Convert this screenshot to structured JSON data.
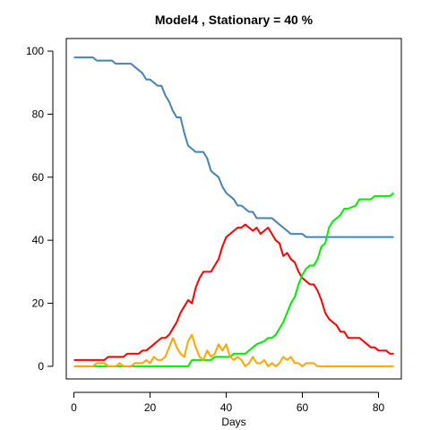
{
  "chart_data": {
    "type": "line",
    "title": "Model4 , Stationary = 40 %",
    "xlabel": "Days",
    "ylabel": "",
    "xlim": [
      -2,
      86
    ],
    "ylim": [
      -4,
      104
    ],
    "x_ticks": [
      0,
      20,
      40,
      60,
      80
    ],
    "y_ticks": [
      0,
      20,
      40,
      60,
      80,
      100
    ],
    "grid": false,
    "legend": "none",
    "series": [
      {
        "color": "#4682B4",
        "points": [
          [
            0,
            98
          ],
          [
            5,
            98
          ],
          [
            6,
            97
          ],
          [
            10,
            97
          ],
          [
            11,
            96
          ],
          [
            15,
            96
          ],
          [
            16,
            95
          ],
          [
            17,
            94
          ],
          [
            18,
            93
          ],
          [
            19,
            91
          ],
          [
            20,
            91
          ],
          [
            21,
            90
          ],
          [
            22,
            89
          ],
          [
            23,
            89
          ],
          [
            24,
            86
          ],
          [
            25,
            84
          ],
          [
            26,
            81
          ],
          [
            27,
            79
          ],
          [
            28,
            79
          ],
          [
            29,
            74
          ],
          [
            30,
            70
          ],
          [
            31,
            69
          ],
          [
            32,
            68
          ],
          [
            34,
            68
          ],
          [
            35,
            66
          ],
          [
            36,
            62
          ],
          [
            37,
            61
          ],
          [
            38,
            60
          ],
          [
            39,
            57
          ],
          [
            40,
            55
          ],
          [
            41,
            54
          ],
          [
            42,
            53
          ],
          [
            43,
            51
          ],
          [
            44,
            51
          ],
          [
            45,
            50
          ],
          [
            46,
            49
          ],
          [
            47,
            49
          ],
          [
            48,
            47
          ],
          [
            52,
            47
          ],
          [
            53,
            46
          ],
          [
            54,
            45
          ],
          [
            55,
            44
          ],
          [
            56,
            43
          ],
          [
            57,
            42
          ],
          [
            60,
            42
          ],
          [
            61,
            41
          ],
          [
            84,
            41
          ]
        ]
      },
      {
        "color": "#FF0000",
        "points": [
          [
            0,
            2
          ],
          [
            8,
            2
          ],
          [
            9,
            3
          ],
          [
            13,
            3
          ],
          [
            14,
            4
          ],
          [
            17,
            4
          ],
          [
            18,
            5
          ],
          [
            19,
            5
          ],
          [
            20,
            6
          ],
          [
            21,
            7
          ],
          [
            22,
            8
          ],
          [
            23,
            9
          ],
          [
            24,
            9
          ],
          [
            25,
            10
          ],
          [
            26,
            12
          ],
          [
            27,
            14
          ],
          [
            28,
            17
          ],
          [
            29,
            19
          ],
          [
            30,
            21
          ],
          [
            31,
            20
          ],
          [
            32,
            25
          ],
          [
            33,
            28
          ],
          [
            34,
            30
          ],
          [
            36,
            30
          ],
          [
            37,
            32
          ],
          [
            38,
            34
          ],
          [
            39,
            38
          ],
          [
            40,
            41
          ],
          [
            41,
            42
          ],
          [
            42,
            43
          ],
          [
            43,
            44
          ],
          [
            44,
            44
          ],
          [
            45,
            45
          ],
          [
            46,
            44
          ],
          [
            47,
            43
          ],
          [
            48,
            44
          ],
          [
            49,
            42
          ],
          [
            50,
            43
          ],
          [
            51,
            44
          ],
          [
            52,
            42
          ],
          [
            53,
            40
          ],
          [
            54,
            39
          ],
          [
            55,
            35
          ],
          [
            56,
            36
          ],
          [
            57,
            34
          ],
          [
            58,
            33
          ],
          [
            59,
            30
          ],
          [
            60,
            28
          ],
          [
            61,
            27
          ],
          [
            62,
            26
          ],
          [
            63,
            26
          ],
          [
            64,
            24
          ],
          [
            65,
            21
          ],
          [
            66,
            17
          ],
          [
            67,
            15
          ],
          [
            68,
            14
          ],
          [
            69,
            13
          ],
          [
            70,
            11
          ],
          [
            71,
            11
          ],
          [
            72,
            9
          ],
          [
            75,
            9
          ],
          [
            76,
            8
          ],
          [
            77,
            7
          ],
          [
            78,
            6
          ],
          [
            79,
            6
          ],
          [
            80,
            5
          ],
          [
            82,
            5
          ],
          [
            83,
            4
          ],
          [
            84,
            4
          ]
        ]
      },
      {
        "color": "#00EE00",
        "points": [
          [
            0,
            0
          ],
          [
            30,
            0
          ],
          [
            31,
            2
          ],
          [
            36,
            2
          ],
          [
            37,
            3
          ],
          [
            41,
            3
          ],
          [
            42,
            4
          ],
          [
            45,
            4
          ],
          [
            46,
            5
          ],
          [
            47,
            6
          ],
          [
            48,
            7
          ],
          [
            50,
            8
          ],
          [
            51,
            9
          ],
          [
            52,
            9
          ],
          [
            53,
            10
          ],
          [
            54,
            12
          ],
          [
            55,
            14
          ],
          [
            56,
            17
          ],
          [
            57,
            20
          ],
          [
            58,
            22
          ],
          [
            59,
            26
          ],
          [
            60,
            29
          ],
          [
            61,
            31
          ],
          [
            62,
            32
          ],
          [
            63,
            32
          ],
          [
            64,
            34
          ],
          [
            65,
            38
          ],
          [
            66,
            39
          ],
          [
            67,
            44
          ],
          [
            68,
            46
          ],
          [
            69,
            47
          ],
          [
            70,
            48
          ],
          [
            71,
            50
          ],
          [
            72,
            50
          ],
          [
            74,
            51
          ],
          [
            75,
            53
          ],
          [
            78,
            53
          ],
          [
            79,
            54
          ],
          [
            83,
            54
          ],
          [
            84,
            55
          ]
        ]
      },
      {
        "color": "#FFA500",
        "points": [
          [
            0,
            0
          ],
          [
            5,
            0
          ],
          [
            6,
            1
          ],
          [
            8,
            1
          ],
          [
            9,
            0
          ],
          [
            11,
            0
          ],
          [
            12,
            1
          ],
          [
            13,
            0
          ],
          [
            15,
            0
          ],
          [
            16,
            1
          ],
          [
            18,
            1
          ],
          [
            19,
            2
          ],
          [
            20,
            1
          ],
          [
            21,
            3
          ],
          [
            22,
            2
          ],
          [
            23,
            2
          ],
          [
            24,
            3
          ],
          [
            25,
            6
          ],
          [
            26,
            9
          ],
          [
            27,
            6
          ],
          [
            28,
            4
          ],
          [
            29,
            3
          ],
          [
            30,
            8
          ],
          [
            31,
            10
          ],
          [
            32,
            6
          ],
          [
            33,
            3
          ],
          [
            34,
            2
          ],
          [
            35,
            5
          ],
          [
            36,
            3
          ],
          [
            37,
            4
          ],
          [
            38,
            7
          ],
          [
            39,
            5
          ],
          [
            40,
            7
          ],
          [
            41,
            3
          ],
          [
            42,
            2
          ],
          [
            43,
            3
          ],
          [
            44,
            2
          ],
          [
            45,
            0
          ],
          [
            46,
            1
          ],
          [
            47,
            3
          ],
          [
            48,
            1
          ],
          [
            49,
            1
          ],
          [
            50,
            2
          ],
          [
            51,
            0
          ],
          [
            52,
            1
          ],
          [
            53,
            0
          ],
          [
            54,
            1
          ],
          [
            55,
            3
          ],
          [
            56,
            2
          ],
          [
            57,
            3
          ],
          [
            58,
            1
          ],
          [
            59,
            1
          ],
          [
            60,
            0
          ],
          [
            61,
            1
          ],
          [
            63,
            1
          ],
          [
            64,
            0
          ],
          [
            84,
            0
          ]
        ]
      }
    ]
  }
}
